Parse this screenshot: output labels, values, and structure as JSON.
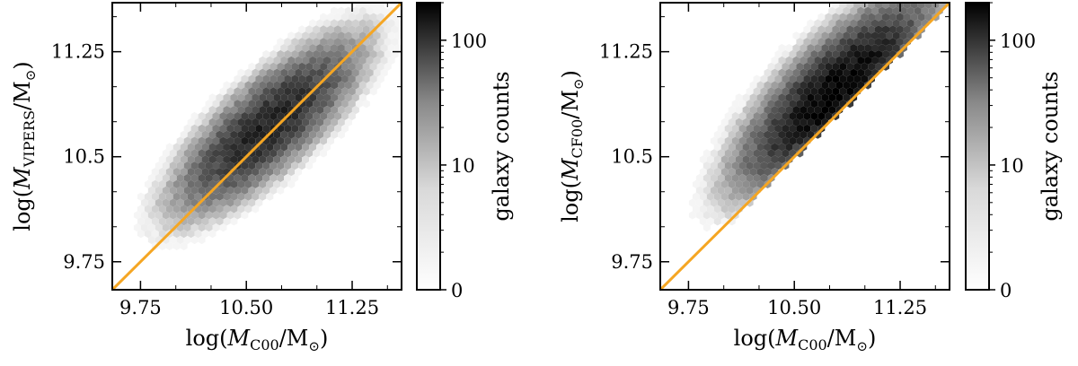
{
  "chart_data": [
    {
      "type": "heatmap",
      "subtype": "hexbin",
      "xlabel_main": "log(",
      "xlabel_var": "M",
      "xlabel_sub": "C00",
      "xlabel_end": "/M",
      "xlabel_sun": "⊙",
      "xlabel_close": ")",
      "ylabel_main": "log(",
      "ylabel_var": "M",
      "ylabel_sub": "VIPERS",
      "ylabel_end": "/M",
      "ylabel_sun": "⊙",
      "ylabel_close": ")",
      "xlim": [
        9.55,
        11.6
      ],
      "ylim": [
        9.55,
        11.6
      ],
      "xticks": [
        "9.75",
        "10.50",
        "11.25"
      ],
      "xtick_values": [
        9.75,
        10.5,
        11.25
      ],
      "yticks": [
        "9.75",
        "10.5",
        "11.25"
      ],
      "ytick_values": [
        9.75,
        10.5,
        11.25
      ],
      "one_to_one_line": true,
      "line_color": "#f5a623",
      "density": {
        "center_x": 10.65,
        "center_y": 10.72,
        "slope": 0.92,
        "spread_along": 0.38,
        "spread_across": 0.13,
        "peak_count": 110
      },
      "colorbar": {
        "label": "galaxy counts",
        "scale": "log",
        "ticks": [
          "0",
          "10",
          "100"
        ],
        "tick_values": [
          1,
          10,
          100
        ],
        "range": [
          1,
          200
        ]
      }
    },
    {
      "type": "heatmap",
      "subtype": "hexbin",
      "xlabel_main": "log(",
      "xlabel_var": "M",
      "xlabel_sub": "C00",
      "xlabel_end": "/M",
      "xlabel_sun": "⊙",
      "xlabel_close": ")",
      "ylabel_main": "log(",
      "ylabel_var": "M",
      "ylabel_sub": "CF00",
      "ylabel_end": "/M",
      "ylabel_sun": "⊙",
      "ylabel_close": ")",
      "xlim": [
        9.55,
        11.6
      ],
      "ylim": [
        9.55,
        11.6
      ],
      "xticks": [
        "9.75",
        "10.50",
        "11.25"
      ],
      "xtick_values": [
        9.75,
        10.5,
        11.25
      ],
      "yticks": [
        "9.75",
        "10.5",
        "11.25"
      ],
      "ytick_values": [
        9.75,
        10.5,
        11.25
      ],
      "one_to_one_line": true,
      "line_color": "#f5a623",
      "density": {
        "center_x": 10.8,
        "center_y": 10.95,
        "slope": 1.0,
        "spread_along": 0.4,
        "spread_across": 0.08,
        "peak_count": 200
      },
      "colorbar": {
        "label": "galaxy counts",
        "scale": "log",
        "ticks": [
          "0",
          "10",
          "100"
        ],
        "tick_values": [
          1,
          10,
          100
        ],
        "range": [
          1,
          200
        ]
      }
    }
  ]
}
